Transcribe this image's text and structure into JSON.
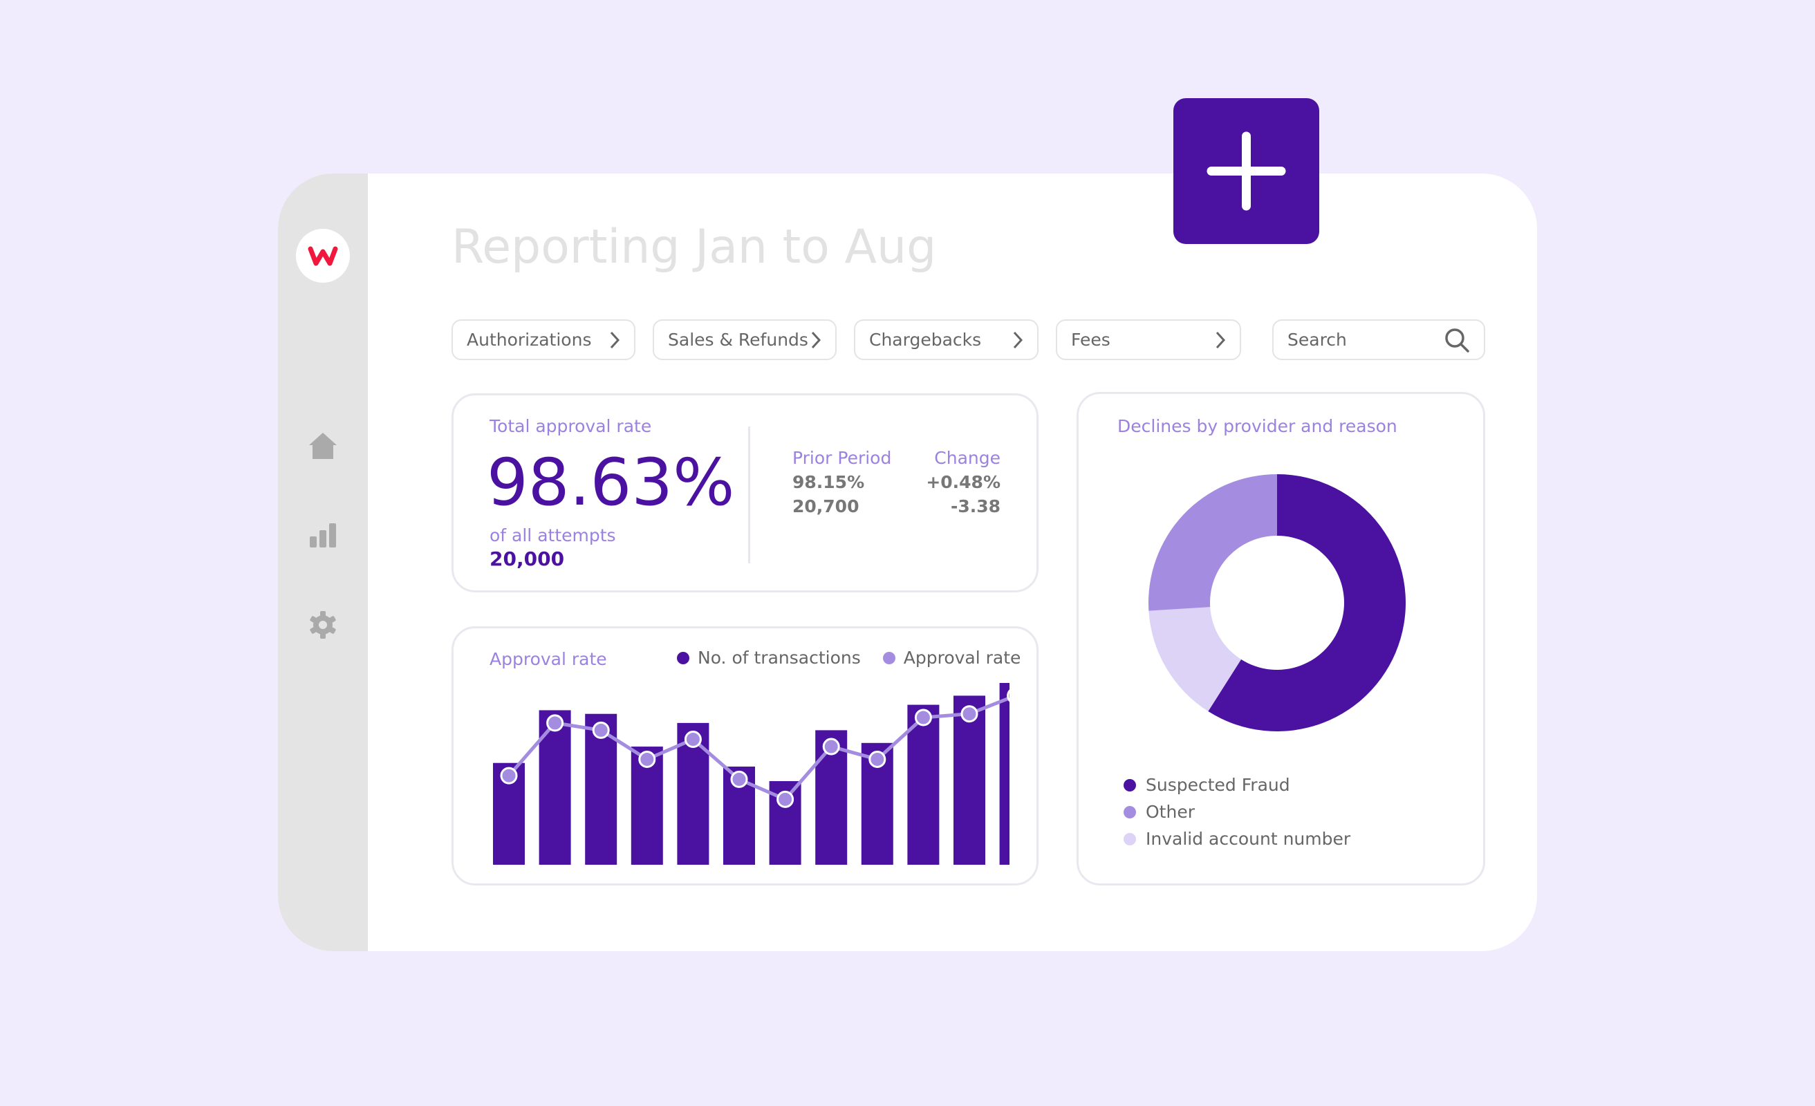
{
  "header": {
    "title": "Reporting Jan to Aug",
    "add_button_icon": "plus-icon"
  },
  "logo": {
    "letter": "w",
    "color": "#f0183c"
  },
  "sidebar": {
    "items": [
      {
        "icon": "home-icon"
      },
      {
        "icon": "bar-chart-icon"
      },
      {
        "icon": "gear-icon"
      }
    ]
  },
  "filters": [
    {
      "label": "Authorizations"
    },
    {
      "label": "Sales & Refunds"
    },
    {
      "label": "Chargebacks"
    },
    {
      "label": "Fees"
    }
  ],
  "search": {
    "placeholder": "Search"
  },
  "stats": {
    "label": "Total approval rate",
    "value": "98.63%",
    "sub_label": "of all attempts",
    "sub_value": "20,000",
    "prior_header": "Prior Period",
    "change_header": "Change",
    "prior_rate": "98.15%",
    "prior_count": "20,700",
    "change_rate": "+0.48%",
    "change_count": "-3.38"
  },
  "colors": {
    "primary": "#4b12a1",
    "secondary": "#a48de0",
    "tertiary": "#dcd3f6",
    "background": "#f0ecfd"
  },
  "chart_data": [
    {
      "type": "bar",
      "title": "Approval rate",
      "legend_position": "top-right",
      "grid": false,
      "ylim": [
        0,
        100
      ],
      "series": [
        {
          "name": "No. of transactions",
          "type": "bar",
          "color": "#4b12a1",
          "values": [
            56,
            85,
            83,
            65,
            78,
            54,
            46,
            74,
            67,
            88,
            93,
            100
          ]
        },
        {
          "name": "Approval rate",
          "type": "line",
          "color": "#a48de0",
          "values": [
            49,
            78,
            74,
            58,
            69,
            47,
            36,
            65,
            58,
            81,
            83,
            93
          ]
        }
      ]
    },
    {
      "type": "pie",
      "title": "Declines by provider and reason",
      "donut": true,
      "legend_position": "bottom-left",
      "slices": [
        {
          "name": "Suspected Fraud",
          "value": 59,
          "color": "#4b12a1"
        },
        {
          "name": "Invalid account number",
          "value": 15,
          "color": "#dcd3f6"
        },
        {
          "name": "Other",
          "value": 26,
          "color": "#a48de0"
        }
      ],
      "legend": [
        {
          "name": "Suspected Fraud",
          "color": "#4b12a1"
        },
        {
          "name": "Other",
          "color": "#a48de0"
        },
        {
          "name": "Invalid account number",
          "color": "#dcd3f6"
        }
      ]
    }
  ]
}
